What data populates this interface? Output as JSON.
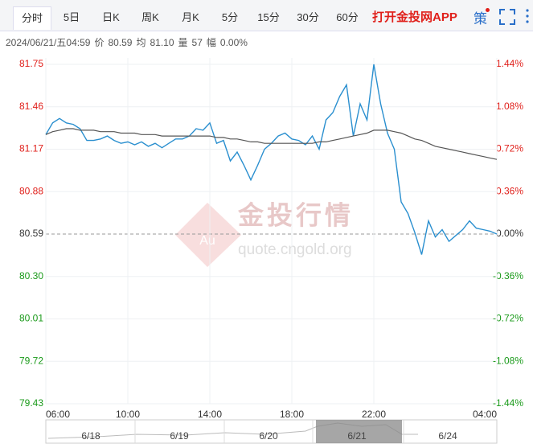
{
  "tabs": [
    "分时",
    "5日",
    "日K",
    "周K",
    "月K",
    "5分",
    "15分",
    "30分",
    "60分"
  ],
  "app_link": "打开金投网APP",
  "strategy": "策",
  "info": [
    {
      "value": "2024/06/21/五04:59"
    },
    {
      "label": "价",
      "value": "80.59"
    },
    {
      "label": "均",
      "value": "81.10"
    },
    {
      "label": "量",
      "value": "57"
    },
    {
      "label": "幅",
      "value": "0.00%"
    }
  ],
  "watermark": {
    "title": "金投行情",
    "url": "quote.cngold.org",
    "logo": "Au"
  },
  "navigator": {
    "dates": [
      "6/18",
      "6/19",
      "6/20",
      "6/21",
      "6/24"
    ]
  },
  "chart_data": {
    "type": "line",
    "x": [
      "06:00",
      "06:20",
      "06:40",
      "07:00",
      "07:20",
      "07:40",
      "08:00",
      "08:20",
      "08:40",
      "09:00",
      "09:20",
      "09:40",
      "10:00",
      "10:20",
      "10:40",
      "11:00",
      "11:20",
      "11:40",
      "12:00",
      "12:20",
      "12:40",
      "13:00",
      "13:20",
      "13:40",
      "14:00",
      "14:20",
      "14:40",
      "15:00",
      "15:20",
      "15:40",
      "16:00",
      "16:20",
      "16:40",
      "17:00",
      "17:20",
      "17:40",
      "18:00",
      "18:20",
      "18:40",
      "19:00",
      "19:20",
      "19:40",
      "20:00",
      "20:20",
      "20:40",
      "21:00",
      "21:20",
      "21:40",
      "22:00",
      "22:20",
      "22:40",
      "23:00",
      "23:20",
      "23:40",
      "00:00",
      "00:20",
      "00:40",
      "01:00",
      "01:20",
      "01:40",
      "02:00",
      "02:20",
      "02:40",
      "03:00",
      "03:20",
      "03:40",
      "04:00"
    ],
    "series": [
      {
        "color": "#2a8fcf",
        "values": [
          81.27,
          81.35,
          81.38,
          81.35,
          81.34,
          81.31,
          81.23,
          81.23,
          81.24,
          81.26,
          81.23,
          81.21,
          81.22,
          81.2,
          81.22,
          81.19,
          81.21,
          81.18,
          81.21,
          81.24,
          81.24,
          81.26,
          81.31,
          81.3,
          81.35,
          81.21,
          81.23,
          81.09,
          81.15,
          81.06,
          80.96,
          81.06,
          81.17,
          81.21,
          81.26,
          81.28,
          81.24,
          81.23,
          81.2,
          81.26,
          81.17,
          81.37,
          81.42,
          81.53,
          81.61,
          81.26,
          81.48,
          81.37,
          81.75,
          81.48,
          81.28,
          81.17,
          80.81,
          80.73,
          80.6,
          80.45,
          80.68,
          80.57,
          80.62,
          80.54,
          80.58,
          80.62,
          80.68,
          80.63,
          80.62,
          80.61,
          80.59
        ]
      },
      {
        "color": "#555555",
        "values": [
          81.27,
          81.29,
          81.3,
          81.31,
          81.31,
          81.3,
          81.3,
          81.3,
          81.29,
          81.29,
          81.29,
          81.28,
          81.28,
          81.28,
          81.27,
          81.27,
          81.27,
          81.26,
          81.26,
          81.26,
          81.26,
          81.26,
          81.26,
          81.26,
          81.26,
          81.25,
          81.25,
          81.24,
          81.24,
          81.23,
          81.22,
          81.22,
          81.21,
          81.21,
          81.21,
          81.21,
          81.21,
          81.21,
          81.21,
          81.21,
          81.22,
          81.22,
          81.23,
          81.24,
          81.25,
          81.26,
          81.27,
          81.28,
          81.3,
          81.3,
          81.3,
          81.29,
          81.28,
          81.26,
          81.24,
          81.23,
          81.21,
          81.19,
          81.18,
          81.17,
          81.16,
          81.15,
          81.14,
          81.13,
          81.12,
          81.11,
          81.1
        ]
      }
    ],
    "xticks": [
      "06:00",
      "10:00",
      "14:00",
      "18:00",
      "22:00",
      "04:00"
    ],
    "ylim": [
      79.43,
      81.75
    ],
    "yticks": [
      81.75,
      81.46,
      81.17,
      80.88,
      80.59,
      {
        "value": 80.3,
        "label": "80.30"
      },
      80.01,
      79.72,
      79.43
    ],
    "y2lim": [
      -1.44,
      1.44
    ],
    "y2ticks": [
      {
        "value": 1.44,
        "label": "1.44%"
      },
      {
        "value": 1.08,
        "label": "1.08%"
      },
      {
        "value": 0.72,
        "label": "0.72%"
      },
      {
        "value": 0.36,
        "label": "0.36%"
      },
      {
        "value": 0,
        "label": "0.00%"
      },
      {
        "value": -0.36,
        "label": "-0.36%"
      },
      {
        "value": -0.72,
        "label": "-0.72%"
      },
      {
        "value": -1.08,
        "label": "-1.08%"
      },
      {
        "value": -1.44,
        "label": "-1.44%"
      }
    ],
    "grid": true,
    "up_color": "#e0201b",
    "down_color": "#1a9a1a",
    "flat_color": "#333333"
  }
}
